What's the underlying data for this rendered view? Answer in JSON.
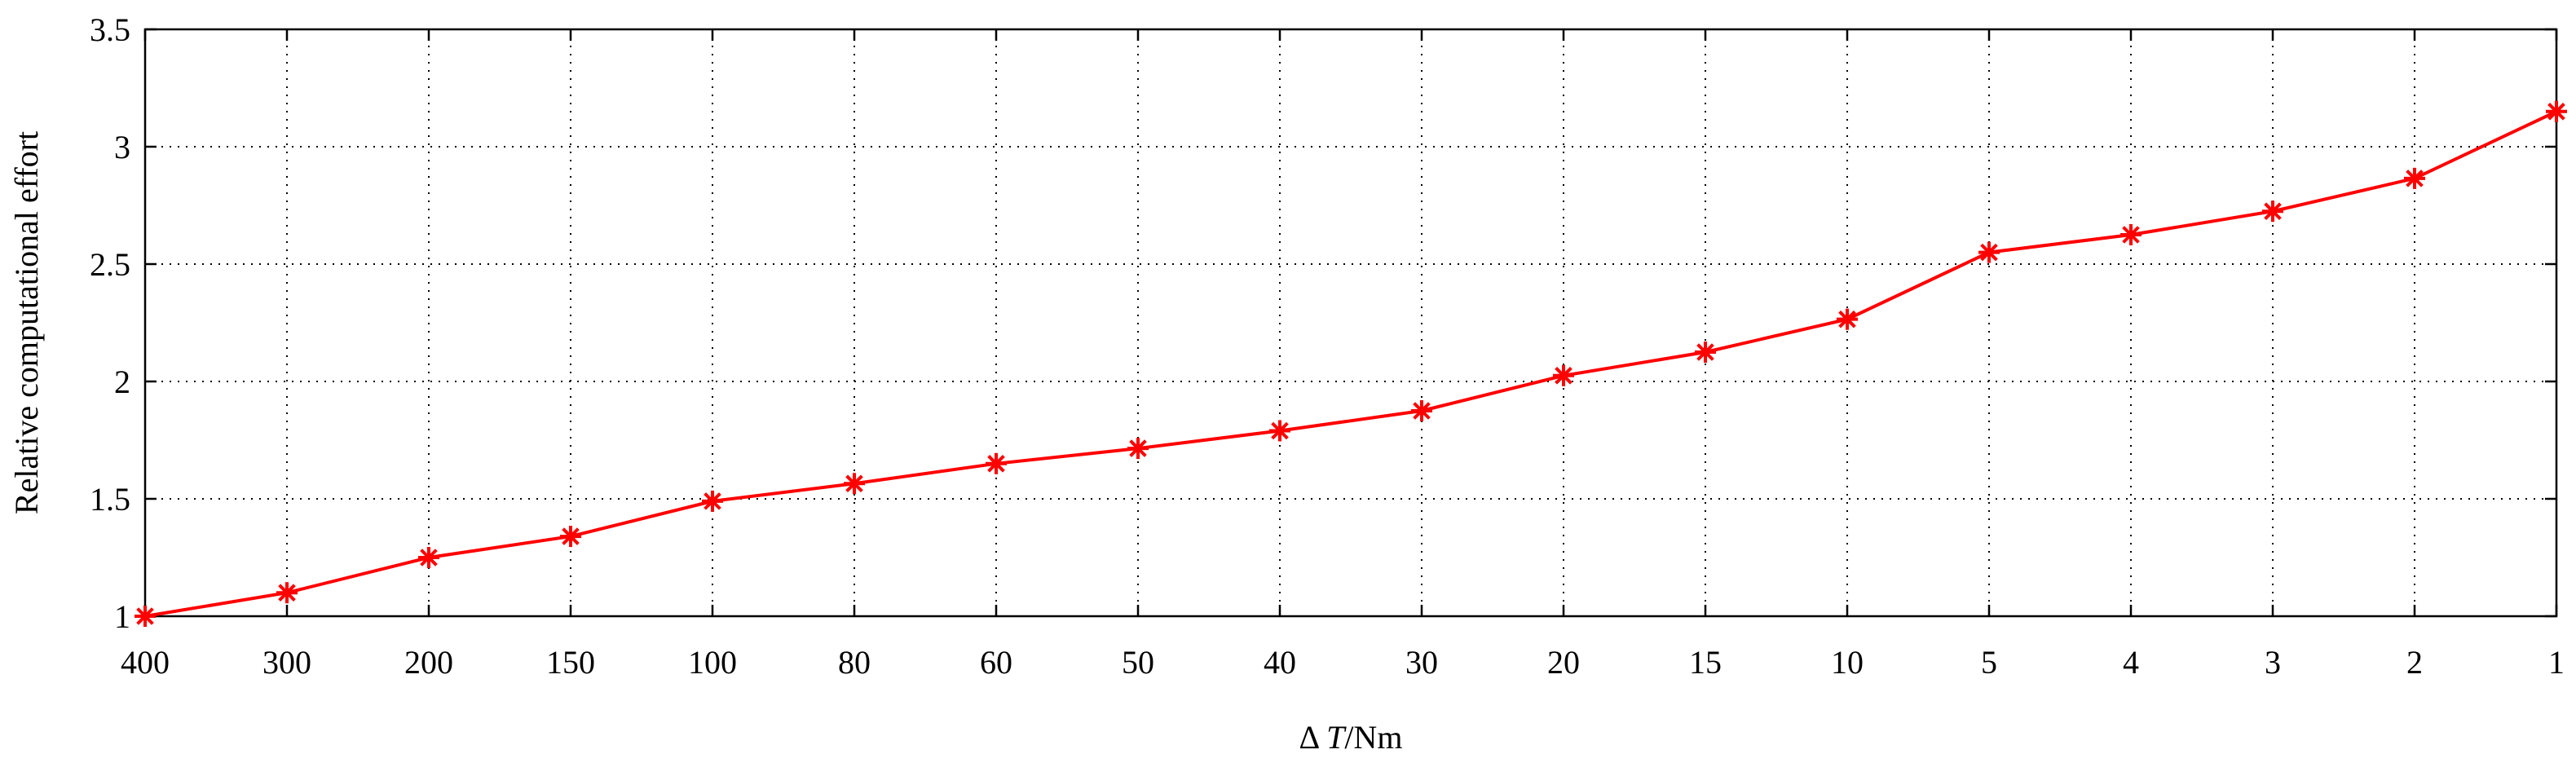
{
  "chart_data": {
    "type": "line",
    "xlabel": {
      "prefix": "Δ ",
      "var": "T",
      "suffix": "/Nm"
    },
    "ylabel": "Relative computational effort",
    "categories": [
      "400",
      "300",
      "200",
      "150",
      "100",
      "80",
      "60",
      "50",
      "40",
      "30",
      "20",
      "15",
      "10",
      "5",
      "4",
      "3",
      "2",
      "1"
    ],
    "yticks": [
      "1",
      "1.5",
      "2",
      "2.5",
      "3",
      "3.5"
    ],
    "ylim": [
      1,
      3.5
    ],
    "grid": true,
    "series": [
      {
        "color": "#ff0000",
        "marker": "asterisk",
        "values": [
          1.0,
          1.1,
          1.25,
          1.34,
          1.49,
          1.565,
          1.65,
          1.715,
          1.79,
          1.875,
          2.025,
          2.125,
          2.265,
          2.55,
          2.625,
          2.725,
          2.865,
          3.15
        ]
      }
    ]
  }
}
